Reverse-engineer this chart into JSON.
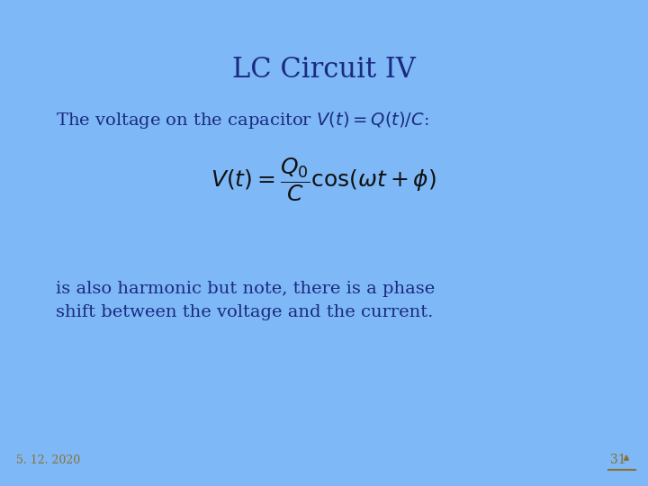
{
  "title": "LC Circuit IV",
  "title_fontsize": 22,
  "title_color": "#1a2a80",
  "bg_color": "#7eb8f7",
  "subtitle": "The voltage on the capacitor $V(t) = Q(t)/C$:",
  "subtitle_fontsize": 14,
  "subtitle_color": "#1a2a80",
  "formula": "$V(t) = \\dfrac{Q_0}{C}\\cos(\\omega t + \\phi)$",
  "formula_fontsize": 18,
  "formula_color": "#111111",
  "body_text": "is also harmonic but note, there is a phase\nshift between the voltage and the current.",
  "body_fontsize": 14,
  "body_color": "#1a2a80",
  "footer_date": "5. 12. 2020",
  "footer_page": "31",
  "footer_fontsize": 9,
  "footer_color": "#8a7030"
}
